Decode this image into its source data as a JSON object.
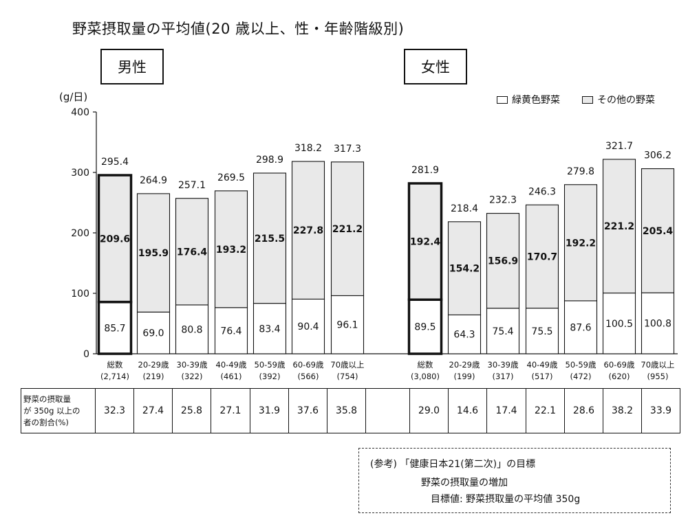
{
  "title": "野菜摂取量の平均値(20 歳以上、性・年齢階級別)",
  "panels": {
    "male": "男性",
    "female": "女性"
  },
  "unit_label": "(g/日)",
  "legend": {
    "green_yellow": "緑黄色野菜",
    "other": "その他の野菜"
  },
  "colors": {
    "green_yellow": "#ffffff",
    "other": "#e9e9e9",
    "outline": "#111111"
  },
  "chart_data": {
    "type": "bar",
    "stacked": true,
    "ylim": [
      0,
      400
    ],
    "yticks": [
      0,
      100,
      200,
      300,
      400
    ],
    "ylabel": "(g/日)",
    "categories": [
      "総数",
      "20-29歳",
      "30-39歳",
      "40-49歳",
      "50-59歳",
      "60-69歳",
      "70歳以上"
    ],
    "groups": [
      {
        "name": "男性",
        "n": [
          "(2,714)",
          "(219)",
          "(322)",
          "(461)",
          "(392)",
          "(566)",
          "(754)"
        ],
        "series": [
          {
            "name": "緑黄色野菜",
            "values": [
              85.7,
              69.0,
              80.8,
              76.4,
              83.4,
              90.4,
              96.1
            ]
          },
          {
            "name": "その他の野菜",
            "values": [
              209.6,
              195.9,
              176.4,
              193.2,
              215.5,
              227.8,
              221.2
            ]
          }
        ],
        "totals": [
          295.4,
          264.9,
          257.1,
          269.5,
          298.9,
          318.2,
          317.3
        ]
      },
      {
        "name": "女性",
        "n": [
          "(3,080)",
          "(199)",
          "(317)",
          "(517)",
          "(472)",
          "(620)",
          "(955)"
        ],
        "series": [
          {
            "name": "緑黄色野菜",
            "values": [
              89.5,
              64.3,
              75.4,
              75.5,
              87.6,
              100.5,
              100.8
            ]
          },
          {
            "name": "その他の野菜",
            "values": [
              192.4,
              154.2,
              156.9,
              170.7,
              192.2,
              221.2,
              205.4
            ]
          }
        ],
        "totals": [
          281.9,
          218.4,
          232.3,
          246.3,
          279.8,
          321.7,
          306.2
        ]
      }
    ]
  },
  "ratio_table": {
    "header_lines": [
      "野菜の摂取量",
      "が 350g 以上の",
      "者の割合(%)"
    ],
    "male": [
      "32.3",
      "27.4",
      "25.8",
      "27.1",
      "31.9",
      "37.6",
      "35.8"
    ],
    "female": [
      "29.0",
      "14.6",
      "17.4",
      "22.1",
      "28.6",
      "38.2",
      "33.9"
    ]
  },
  "reference": {
    "line1": "(参考) 「健康日本21(第二次)」の目標",
    "line2": "野菜の摂取量の増加",
    "line3": "目標値:  野菜摂取量の平均値  350g"
  }
}
